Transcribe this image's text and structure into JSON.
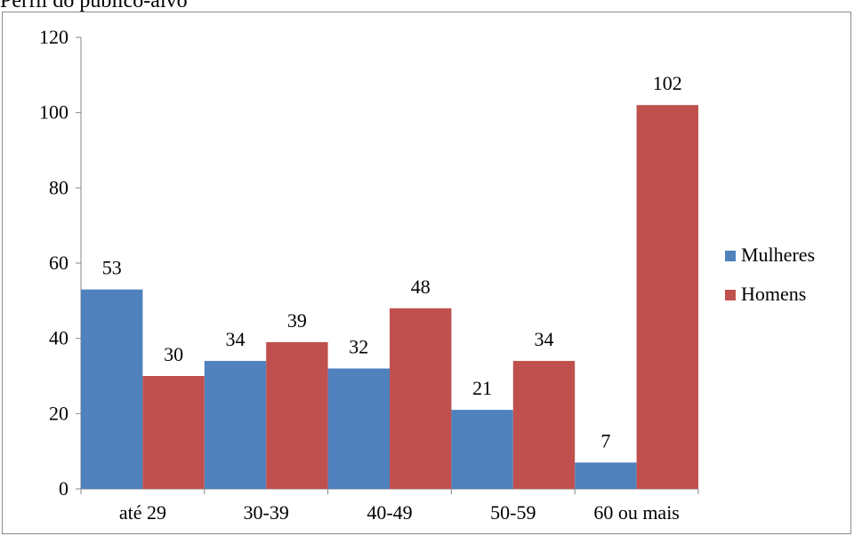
{
  "caption": "Perfil do público-alvo",
  "chart_data": {
    "type": "bar",
    "categories": [
      "até 29",
      "30-39",
      "40-49",
      "50-59",
      "60 ou mais"
    ],
    "series": [
      {
        "name": "Mulheres",
        "values": [
          53,
          34,
          32,
          21,
          7
        ],
        "color": "#4f81bd"
      },
      {
        "name": "Homens",
        "values": [
          30,
          39,
          48,
          34,
          102
        ],
        "color": "#c0504d"
      }
    ],
    "ylim": [
      0,
      120
    ],
    "yticks": [
      0,
      20,
      40,
      60,
      80,
      100,
      120
    ],
    "data_labels": true,
    "grid": false,
    "legend": "right"
  }
}
